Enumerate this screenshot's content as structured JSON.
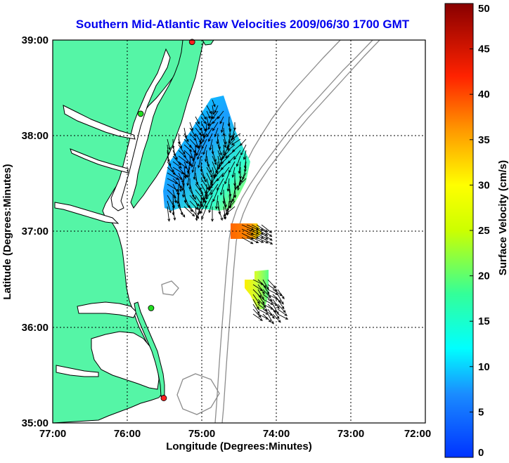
{
  "title": "Southern Mid-Atlantic Raw Velocities 2009/06/30 1700 GMT",
  "map": {
    "xlabel": "Longitude (Degrees:Minutes)",
    "ylabel": "Latitude (Degrees:Minutes)",
    "lon_range": [
      -77,
      -72
    ],
    "lat_range": [
      35,
      39
    ],
    "x_ticks": [
      {
        "value": -77,
        "label": "77:00"
      },
      {
        "value": -76,
        "label": "76:00"
      },
      {
        "value": -75,
        "label": "75:00"
      },
      {
        "value": -74,
        "label": "74:00"
      },
      {
        "value": -73,
        "label": "73:00"
      },
      {
        "value": -72,
        "label": "72:00"
      }
    ],
    "y_ticks": [
      {
        "value": 39,
        "label": "39:00"
      },
      {
        "value": 38,
        "label": "38:00"
      },
      {
        "value": 37,
        "label": "37:00"
      },
      {
        "value": 36,
        "label": "36:00"
      },
      {
        "value": 35,
        "label": "35:00"
      }
    ],
    "land_color": "#55f5a6",
    "water_color": "#ffffff",
    "grid_dotted": true,
    "stations": [
      {
        "lon": -75.13,
        "lat": 38.98,
        "color": "#ff2020"
      },
      {
        "lon": -75.82,
        "lat": 38.23,
        "color": "#22dd22"
      },
      {
        "lon": -75.68,
        "lat": 36.2,
        "color": "#22dd22"
      },
      {
        "lon": -75.51,
        "lat": 35.26,
        "color": "#ff2020"
      }
    ]
  },
  "colorbar": {
    "label": "Surface Velocity (cm/s)",
    "min": 0,
    "max": 50,
    "ticks": [
      "0",
      "5",
      "10",
      "15",
      "20",
      "25",
      "30",
      "35",
      "40",
      "45",
      "50"
    ]
  }
}
